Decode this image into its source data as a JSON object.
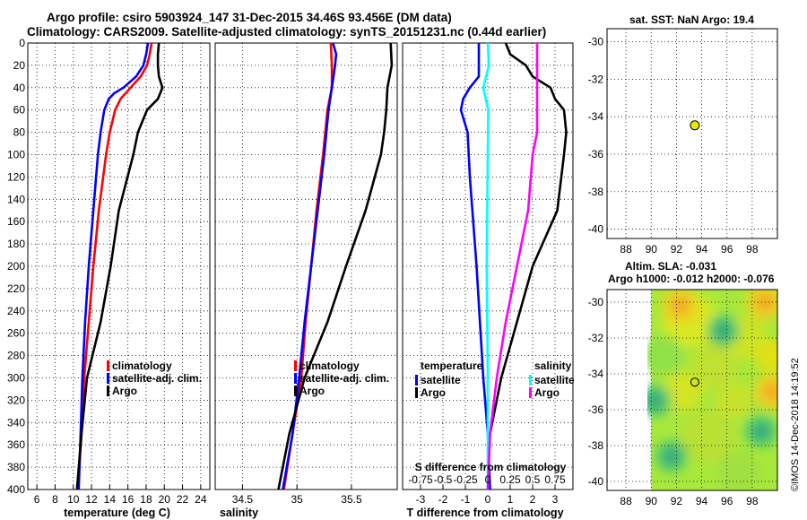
{
  "title_line1": "Argo profile: csiro 5903924_147 31-Dec-2015 34.46S 93.456E (DM data)",
  "title_line2": "Climatology: CARS2009. Satellite-adjusted climatology: synTS_20151231.nc (0.44d earlier)",
  "sst_title": "sat. SST: NaN Argo: 19.4",
  "altim_line1": "Altim. SLA: -0.031",
  "altim_line2": "Argo h1000: -0.012 h2000: -0.076",
  "credit": "©IMOS 14-Dec-2018 14:19:52",
  "colors": {
    "climatology": "#ff0000",
    "satellite": "#0000ff",
    "argo": "#000000",
    "cyan": "#00ffff",
    "magenta": "#ff00ff",
    "argo_marker": "#e8e800"
  },
  "chart_data": [
    {
      "type": "line",
      "name": "temperature",
      "xlabel": "temperature (deg C)",
      "xlim": [
        5,
        25
      ],
      "xticks": [
        6,
        8,
        10,
        12,
        14,
        16,
        18,
        20,
        22,
        24
      ],
      "ylim": [
        400,
        0
      ],
      "yticks": [
        0,
        20,
        40,
        60,
        80,
        100,
        120,
        140,
        160,
        180,
        200,
        220,
        240,
        260,
        280,
        300,
        320,
        340,
        360,
        380,
        400
      ],
      "legend": [
        "climatology",
        "satellite-adj. clim.",
        "Argo"
      ],
      "series": [
        {
          "name": "climatology",
          "color": "climatology",
          "depth": [
            0,
            10,
            20,
            30,
            40,
            50,
            60,
            80,
            100,
            150,
            200,
            250,
            300,
            350,
            400
          ],
          "values": [
            18.6,
            18.4,
            18.1,
            17.4,
            16.3,
            15.2,
            14.6,
            14.0,
            13.6,
            12.8,
            12.2,
            11.7,
            11.2,
            10.9,
            10.5
          ]
        },
        {
          "name": "satellite-adj. clim.",
          "color": "satellite",
          "depth": [
            0,
            10,
            20,
            30,
            40,
            45,
            50,
            60,
            80,
            100,
            150,
            200,
            250,
            300,
            350,
            400
          ],
          "values": [
            18.2,
            18.0,
            17.7,
            16.9,
            15.5,
            14.5,
            13.9,
            13.4,
            13.0,
            12.7,
            12.2,
            11.7,
            11.3,
            11.0,
            10.8,
            10.6
          ]
        },
        {
          "name": "Argo",
          "color": "argo",
          "depth": [
            0,
            10,
            20,
            30,
            40,
            50,
            60,
            80,
            100,
            150,
            200,
            250,
            280,
            300,
            350,
            400
          ],
          "values": [
            19.4,
            19.3,
            19.3,
            19.4,
            19.8,
            19.3,
            18.1,
            17.1,
            16.6,
            15.0,
            14.1,
            13.0,
            12.1,
            11.5,
            10.9,
            10.4
          ]
        }
      ]
    },
    {
      "type": "line",
      "name": "salinity",
      "xlabel": "salinity",
      "xlim": [
        34.25,
        35.92
      ],
      "xticks": [
        34.5,
        35,
        35.5
      ],
      "xticklabels": [
        "34.5",
        "35",
        "35.5"
      ],
      "ylim": [
        400,
        0
      ],
      "legend": [
        "climatology",
        "satellite-adj. clim.",
        "Argo"
      ],
      "series": [
        {
          "name": "climatology",
          "color": "climatology",
          "depth": [
            0,
            20,
            40,
            60,
            100,
            150,
            200,
            250,
            300,
            350,
            400
          ],
          "values": [
            35.31,
            35.32,
            35.32,
            35.28,
            35.24,
            35.18,
            35.13,
            35.08,
            35.04,
            34.96,
            34.88
          ]
        },
        {
          "name": "satellite-adj. clim.",
          "color": "satellite",
          "depth": [
            0,
            10,
            20,
            40,
            60,
            100,
            150,
            200,
            250,
            300,
            350,
            400
          ],
          "values": [
            35.33,
            35.36,
            35.35,
            35.32,
            35.29,
            35.25,
            35.19,
            35.13,
            35.07,
            35.02,
            34.96,
            34.87
          ]
        },
        {
          "name": "Argo",
          "color": "argo",
          "depth": [
            0,
            20,
            40,
            60,
            80,
            100,
            150,
            200,
            250,
            300,
            350,
            400
          ],
          "values": [
            35.86,
            35.87,
            35.83,
            35.82,
            35.8,
            35.77,
            35.63,
            35.45,
            35.28,
            35.07,
            34.93,
            34.83
          ]
        }
      ]
    },
    {
      "type": "line",
      "name": "difference",
      "xlabel": "T difference from climatology",
      "xlim": [
        -3.8,
        3.8
      ],
      "xticks": [
        -3,
        -2,
        -1,
        0,
        1,
        2,
        3
      ],
      "top_xlabel": "S difference from climatology",
      "top_xticklabels": [
        "-0.75",
        "-0.5",
        "-0.25",
        "0",
        "0.25",
        "0.5",
        "0.75"
      ],
      "ylim": [
        400,
        0
      ],
      "legend_temperature": {
        "title": "temperature",
        "entries": [
          "satellite",
          "Argo"
        ]
      },
      "legend_salinity": {
        "title": "salinity",
        "entries": [
          "satellite",
          "Argo"
        ]
      },
      "series": [
        {
          "name": "temperature satellite",
          "color": "satellite",
          "depth": [
            0,
            10,
            30,
            40,
            50,
            60,
            80,
            120,
            200,
            300,
            350,
            400
          ],
          "values": [
            -0.4,
            -0.4,
            -0.4,
            -0.8,
            -1.1,
            -1.2,
            -0.9,
            -0.8,
            -0.5,
            -0.2,
            0.0,
            0.1
          ]
        },
        {
          "name": "temperature Argo",
          "color": "argo",
          "depth": [
            0,
            10,
            20,
            30,
            40,
            50,
            60,
            80,
            100,
            150,
            200,
            250,
            300,
            350,
            400
          ],
          "values": [
            0.8,
            1.0,
            1.7,
            2.0,
            2.8,
            3.0,
            3.4,
            3.5,
            3.4,
            3.1,
            2.0,
            1.3,
            0.6,
            0.1,
            0.0
          ]
        },
        {
          "name": "salinity satellite",
          "color": "cyan",
          "depth": [
            0,
            20,
            40,
            60,
            100,
            200,
            300,
            400
          ],
          "values": [
            0.0,
            0.05,
            -0.2,
            0.02,
            0.0,
            -0.05,
            0.0,
            0.0
          ]
        },
        {
          "name": "salinity Argo",
          "color": "magenta",
          "depth": [
            0,
            40,
            80,
            100,
            150,
            200,
            250,
            300,
            350,
            400
          ],
          "values": [
            2.2,
            2.2,
            2.2,
            2.0,
            1.8,
            1.3,
            0.8,
            0.4,
            0.1,
            0.0
          ]
        }
      ]
    },
    {
      "type": "scatter",
      "name": "sst-map",
      "xlim": [
        86.5,
        100
      ],
      "ylim": [
        -40.5,
        -29.3
      ],
      "xticks": [
        88,
        90,
        92,
        94,
        96,
        98
      ],
      "yticks": [
        -30,
        -32,
        -34,
        -36,
        -38,
        -40
      ],
      "argo_position": {
        "lon": 93.456,
        "lat": -34.46
      }
    },
    {
      "type": "heatmap",
      "name": "altimetry-map",
      "xlim": [
        86.5,
        100
      ],
      "ylim": [
        -40.5,
        -29.3
      ],
      "data_xlim": [
        90,
        100
      ],
      "xticks": [
        88,
        90,
        92,
        94,
        96,
        98
      ],
      "yticks": [
        -30,
        -32,
        -34,
        -36,
        -38,
        -40
      ],
      "argo_position": {
        "lon": 93.456,
        "lat": -34.46
      },
      "highs": [
        {
          "lon": 99.0,
          "lat": -30.0
        },
        {
          "lon": 92.3,
          "lat": -30.2
        },
        {
          "lon": 99.6,
          "lat": -35.0
        }
      ],
      "lows": [
        {
          "lon": 91.6,
          "lat": -38.6
        },
        {
          "lon": 95.7,
          "lat": -31.6
        },
        {
          "lon": 98.7,
          "lat": -37.2
        },
        {
          "lon": 90.3,
          "lat": -35.5
        }
      ]
    }
  ]
}
